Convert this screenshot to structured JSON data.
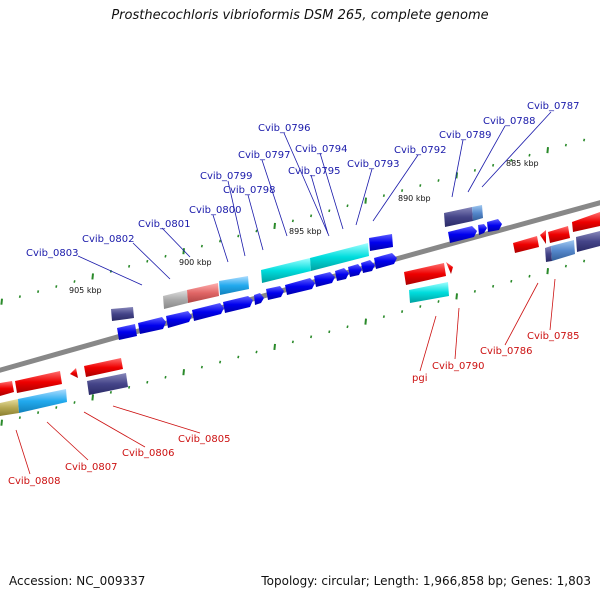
{
  "title": "Prosthecochloris vibrioformis DSM 265, complete genome",
  "footer": {
    "accession": "Accession: NC_009337",
    "summary": "Topology: circular; Length: 1,966,858 bp; Genes: 1,803"
  },
  "scale_labels": [
    "885 kbp",
    "890 kbp",
    "895 kbp",
    "900 kbp",
    "905 kbp"
  ],
  "colors": {
    "backbone": "#888888",
    "tick": "#2a8a2a",
    "label_top": "#1a1aaa",
    "label_bottom": "#cc1111"
  },
  "genes_top": [
    "Cvib_0803",
    "Cvib_0802",
    "Cvib_0801",
    "Cvib_0800",
    "Cvib_0799",
    "Cvib_0798",
    "Cvib_0797",
    "Cvib_0796",
    "Cvib_0795",
    "Cvib_0794",
    "Cvib_0793",
    "Cvib_0792",
    "Cvib_0789",
    "Cvib_0788",
    "Cvib_0787"
  ],
  "genes_bottom": [
    "Cvib_0808",
    "Cvib_0807",
    "Cvib_0806",
    "Cvib_0805",
    "pgi",
    "Cvib_0790",
    "Cvib_0786",
    "Cvib_0785"
  ]
}
